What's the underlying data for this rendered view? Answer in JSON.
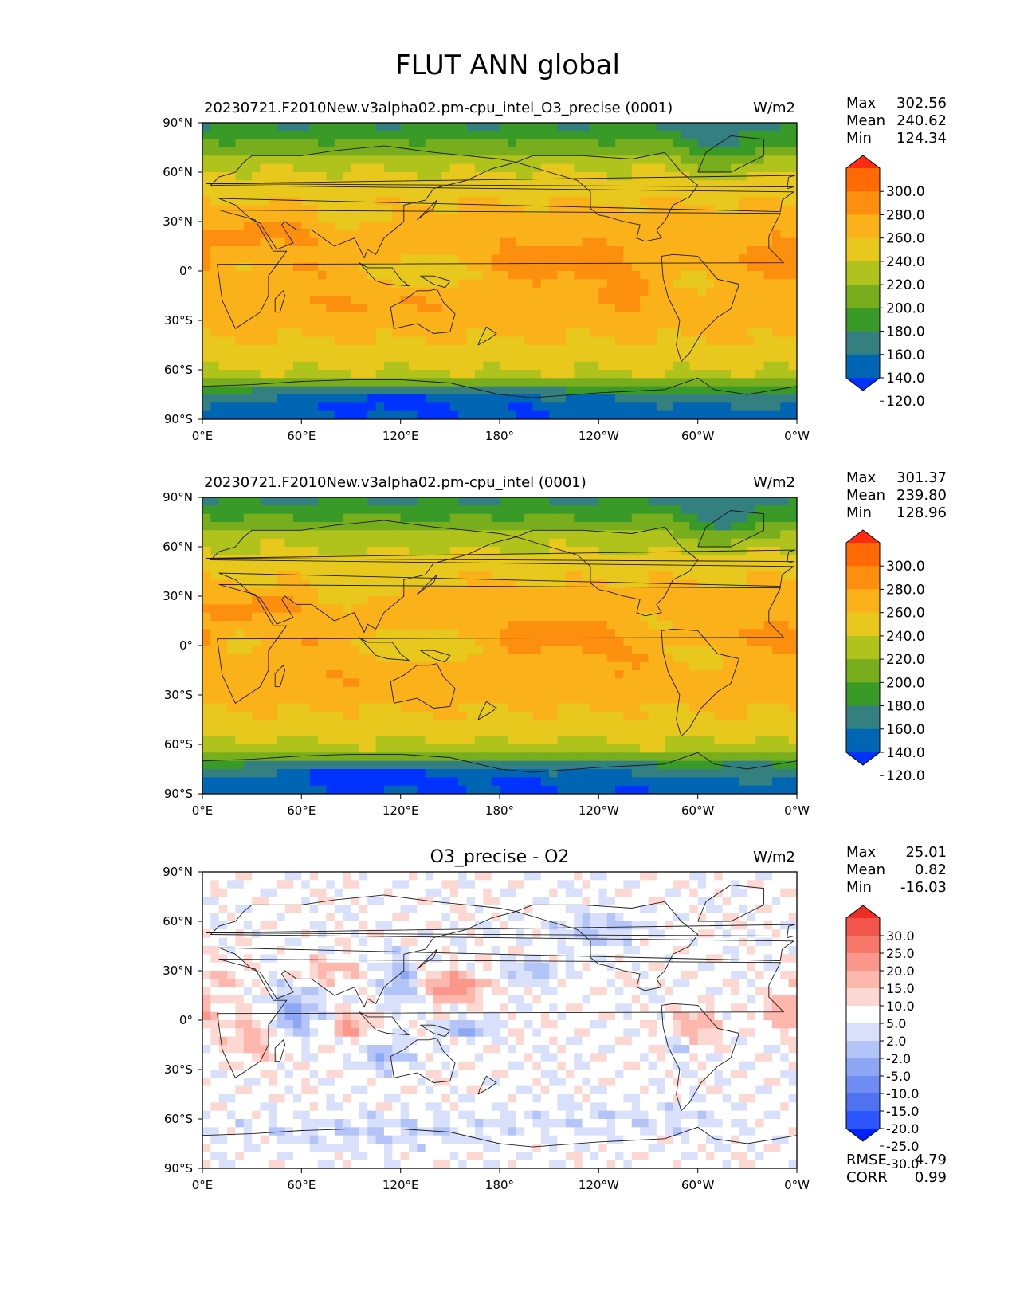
{
  "suptitle": "FLUT ANN global",
  "colors": {
    "flut": [
      "#0033ff",
      "#0066b3",
      "#348080",
      "#3a9a28",
      "#78ad1e",
      "#b0c31c",
      "#e8c81c",
      "#fbb21a",
      "#fd8f0e",
      "#ff6a06",
      "#ff2b10"
    ],
    "diff": [
      "#0022ff",
      "#2b55ff",
      "#4f73f0",
      "#6e8cf2",
      "#8ea7f5",
      "#b3c4f8",
      "#d8e0fb",
      "#ffffff",
      "#fdd7d1",
      "#fdb7ad",
      "#fb968a",
      "#f8786b",
      "#f2554a",
      "#ee2d22"
    ]
  },
  "chart_data": [
    {
      "type": "heatmap",
      "title": "20230721.F2010New.v3alpha02.pm-cpu_intel_O3_precise (0001)",
      "units": "W/m2",
      "x_ticks": [
        "0°E",
        "60°E",
        "120°E",
        "180°",
        "120°W",
        "60°W",
        "0°W"
      ],
      "y_ticks": [
        "90°N",
        "60°N",
        "30°N",
        "0°",
        "30°S",
        "60°S",
        "90°S"
      ],
      "stats": {
        "max_label": "Max",
        "max": "302.56",
        "mean_label": "Mean",
        "mean": "240.62",
        "min_label": "Min",
        "min": "124.34"
      },
      "levels": [
        120,
        140,
        160,
        180,
        200,
        220,
        240,
        260,
        280,
        300
      ],
      "colorbar_labels": [
        "300.0",
        "280.0",
        "260.0",
        "240.0",
        "220.0",
        "200.0",
        "180.0",
        "160.0",
        "140.0",
        "120.0"
      ]
    },
    {
      "type": "heatmap",
      "title": "20230721.F2010New.v3alpha02.pm-cpu_intel (0001)",
      "units": "W/m2",
      "x_ticks": [
        "0°E",
        "60°E",
        "120°E",
        "180°",
        "120°W",
        "60°W",
        "0°W"
      ],
      "y_ticks": [
        "90°N",
        "60°N",
        "30°N",
        "0°",
        "30°S",
        "60°S",
        "90°S"
      ],
      "stats": {
        "max_label": "Max",
        "max": "301.37",
        "mean_label": "Mean",
        "mean": "239.80",
        "min_label": "Min",
        "min": "128.96"
      },
      "levels": [
        120,
        140,
        160,
        180,
        200,
        220,
        240,
        260,
        280,
        300
      ],
      "colorbar_labels": [
        "300.0",
        "280.0",
        "260.0",
        "240.0",
        "220.0",
        "200.0",
        "180.0",
        "160.0",
        "140.0",
        "120.0"
      ]
    },
    {
      "type": "heatmap",
      "title": "O3_precise - O2",
      "units": "W/m2",
      "x_ticks": [
        "0°E",
        "60°E",
        "120°E",
        "180°",
        "120°W",
        "60°W",
        "0°W"
      ],
      "y_ticks": [
        "90°N",
        "60°N",
        "30°N",
        "0°",
        "30°S",
        "60°S",
        "90°S"
      ],
      "stats": {
        "max_label": "Max",
        "max": "25.01",
        "mean_label": "Mean",
        "mean": "0.82",
        "min_label": "Min",
        "min": "-16.03"
      },
      "levels": [
        -30,
        -25,
        -20,
        -15,
        -10,
        -5,
        -2,
        2,
        5,
        10,
        15,
        20,
        25,
        30
      ],
      "colorbar_labels": [
        "30.0",
        "25.0",
        "20.0",
        "15.0",
        "10.0",
        "5.0",
        "2.0",
        "-2.0",
        "-5.0",
        "-10.0",
        "-15.0",
        "-20.0",
        "-25.0",
        "-30.0"
      ],
      "metrics": {
        "rmse_label": "RMSE",
        "rmse": "4.79",
        "corr_label": "CORR",
        "corr": "0.99"
      }
    }
  ]
}
